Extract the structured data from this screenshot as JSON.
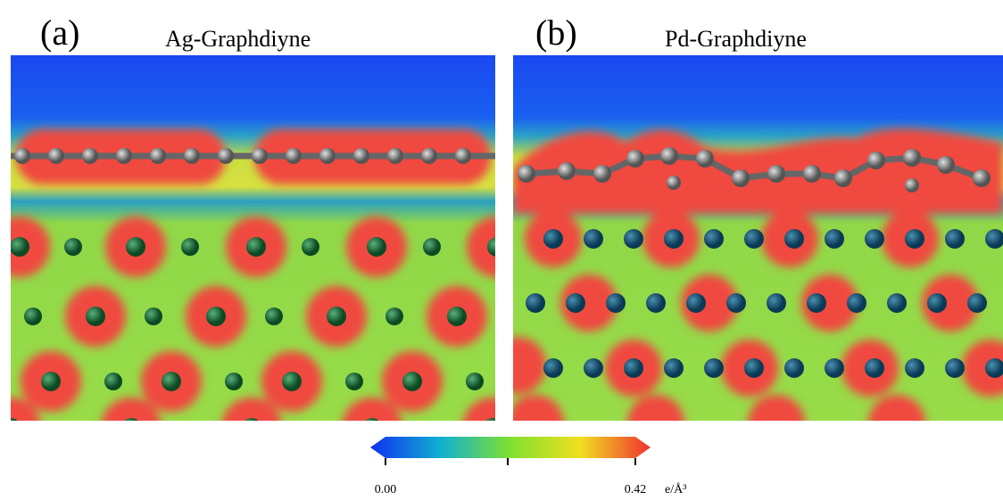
{
  "panels": [
    {
      "label": "(a)",
      "title": "Ag-Graphdiyne"
    },
    {
      "label": "(b)",
      "title": "Pd-Graphdiyne"
    }
  ],
  "colorbar": {
    "ticks": [
      {
        "value": 0,
        "label": "0.00"
      },
      {
        "value": 0.42,
        "label": "0.42"
      }
    ],
    "unit": "e/Å³"
  }
}
